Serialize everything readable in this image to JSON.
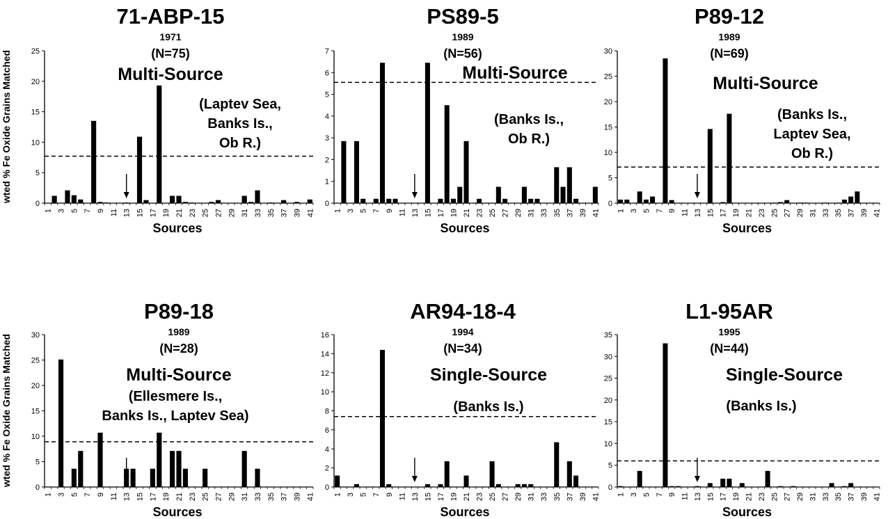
{
  "figure": {
    "ylabel": "wted % Fe Oxide Grains Matched",
    "xlabel": "Sources"
  },
  "chart_data": [
    {
      "type": "bar",
      "title": "71-ABP-15",
      "year": "1971",
      "n": "(N=75)",
      "classification": "Multi-Source",
      "sources_text": [
        "(Laptev Sea,",
        "Banks Is.,",
        "Ob R.)"
      ],
      "xlabel": "Sources",
      "ylabel": "wted % Fe Oxide Grains Matched",
      "ylim": [
        0,
        25
      ],
      "yticks": [
        0,
        5,
        10,
        15,
        20,
        25
      ],
      "categories": [
        1,
        2,
        3,
        4,
        5,
        6,
        7,
        8,
        9,
        10,
        11,
        12,
        13,
        14,
        15,
        16,
        17,
        18,
        19,
        20,
        21,
        22,
        23,
        24,
        25,
        26,
        27,
        28,
        29,
        30,
        31,
        32,
        33,
        34,
        35,
        36,
        37,
        38,
        39,
        40,
        41
      ],
      "xtick_labels": [
        "1",
        "3",
        "5",
        "7",
        "9",
        "11",
        "13",
        "15",
        "17",
        "19",
        "21",
        "23",
        "25",
        "27",
        "29",
        "31",
        "33",
        "35",
        "37",
        "39",
        "41"
      ],
      "values": [
        0,
        1.2,
        0,
        2.1,
        1.3,
        0.6,
        0,
        13.5,
        0.2,
        0.1,
        0,
        0,
        0.1,
        0,
        10.9,
        0.5,
        0,
        19.3,
        0,
        1.2,
        1.2,
        0.2,
        0.1,
        0,
        0,
        0.2,
        0.5,
        0,
        0,
        0,
        1.2,
        0.2,
        2.1,
        0,
        0.1,
        0,
        0.5,
        0,
        0.2,
        0,
        0.6
      ],
      "threshold": 7.7,
      "arrow_at": 13
    },
    {
      "type": "bar",
      "title": "PS89-5",
      "year": "1989",
      "n": "(N=56)",
      "classification": "Multi-Source",
      "sources_text": [
        "(Banks Is.,",
        "Ob R.)"
      ],
      "xlabel": "Sources",
      "ylim": [
        0,
        7
      ],
      "yticks": [
        0,
        1,
        2,
        3,
        4,
        5,
        6,
        7
      ],
      "categories": [
        1,
        2,
        3,
        4,
        5,
        6,
        7,
        8,
        9,
        10,
        11,
        12,
        13,
        14,
        15,
        16,
        17,
        18,
        19,
        20,
        21,
        22,
        23,
        24,
        25,
        26,
        27,
        28,
        29,
        30,
        31,
        32,
        33,
        34,
        35,
        36,
        37,
        38,
        39,
        40,
        41
      ],
      "xtick_labels": [
        "1",
        "3",
        "5",
        "7",
        "9",
        "11",
        "13",
        "15",
        "17",
        "19",
        "21",
        "23",
        "25",
        "27",
        "29",
        "31",
        "33",
        "35",
        "37",
        "39",
        "41"
      ],
      "values": [
        0,
        2.85,
        0,
        2.85,
        0.2,
        0,
        0.2,
        6.45,
        0.2,
        0.2,
        0,
        0,
        0,
        0,
        6.45,
        0,
        0.2,
        4.5,
        0.2,
        0.75,
        2.85,
        0,
        0.2,
        0,
        0,
        0.75,
        0.2,
        0,
        0,
        0.75,
        0.2,
        0.2,
        0,
        0,
        1.65,
        0.75,
        1.65,
        0.2,
        0,
        0,
        0.75
      ],
      "threshold": 5.55,
      "arrow_at": 13
    },
    {
      "type": "bar",
      "title": "P89-12",
      "year": "1989",
      "n": "(N=69)",
      "classification": "Multi-Source",
      "sources_text": [
        "(Banks Is.,",
        "Laptev Sea,",
        "Ob R.)"
      ],
      "xlabel": "Sources",
      "ylim": [
        0,
        30
      ],
      "yticks": [
        0,
        5,
        10,
        15,
        20,
        25,
        30
      ],
      "categories": [
        1,
        2,
        3,
        4,
        5,
        6,
        7,
        8,
        9,
        10,
        11,
        12,
        13,
        14,
        15,
        16,
        17,
        18,
        19,
        20,
        21,
        22,
        23,
        24,
        25,
        26,
        27,
        28,
        29,
        30,
        31,
        32,
        33,
        34,
        35,
        36,
        37,
        38,
        39,
        40,
        41
      ],
      "xtick_labels": [
        "1",
        "3",
        "5",
        "7",
        "9",
        "11",
        "13",
        "15",
        "17",
        "19",
        "21",
        "23",
        "25",
        "27",
        "29",
        "31",
        "33",
        "35",
        "37",
        "39",
        "41"
      ],
      "values": [
        0.7,
        0.7,
        0,
        2.3,
        0.7,
        1.3,
        0,
        28.5,
        0.6,
        0,
        0,
        0,
        0,
        0,
        14.6,
        0,
        0.2,
        17.6,
        0,
        0,
        0,
        0,
        0,
        0,
        0.1,
        0.2,
        0.6,
        0,
        0.1,
        0.1,
        0,
        0,
        0.1,
        0,
        0.1,
        0.7,
        1.3,
        2.3,
        0,
        0,
        0
      ],
      "threshold": 7.1,
      "arrow_at": 13
    },
    {
      "type": "bar",
      "title": "P89-18",
      "year": "1989",
      "n": "(N=28)",
      "classification": "Multi-Source",
      "sources_text": [
        "(Ellesmere Is.,",
        "Banks Is., Laptev Sea)"
      ],
      "xlabel": "Sources",
      "ylabel": "wted % Fe Oxide Grains Matched",
      "ylim": [
        0,
        30
      ],
      "yticks": [
        0,
        5,
        10,
        15,
        20,
        25,
        30
      ],
      "categories": [
        1,
        2,
        3,
        4,
        5,
        6,
        7,
        8,
        9,
        10,
        11,
        12,
        13,
        14,
        15,
        16,
        17,
        18,
        19,
        20,
        21,
        22,
        23,
        24,
        25,
        26,
        27,
        28,
        29,
        30,
        31,
        32,
        33,
        34,
        35,
        36,
        37,
        38,
        39,
        40,
        41
      ],
      "xtick_labels": [
        "1",
        "3",
        "5",
        "7",
        "9",
        "11",
        "13",
        "15",
        "17",
        "19",
        "21",
        "23",
        "25",
        "27",
        "29",
        "31",
        "33",
        "35",
        "37",
        "39",
        "41"
      ],
      "values": [
        0,
        0,
        25.1,
        0,
        3.6,
        7.1,
        0,
        0,
        10.7,
        0,
        0,
        0,
        3.6,
        3.6,
        0,
        0,
        3.6,
        10.7,
        0,
        7.1,
        7.1,
        3.6,
        0,
        0,
        3.6,
        0,
        0,
        0,
        0,
        0,
        7.1,
        0,
        3.6,
        0,
        0,
        0,
        0,
        0,
        0,
        0,
        0
      ],
      "threshold": 8.9,
      "arrow_at": 13
    },
    {
      "type": "bar",
      "title": "AR94-18-4",
      "year": "1994",
      "n": "(N=34)",
      "classification": "Single-Source",
      "sources_text": [
        "(Banks Is.)"
      ],
      "xlabel": "Sources",
      "ylim": [
        0,
        16
      ],
      "yticks": [
        0,
        2,
        4,
        6,
        8,
        10,
        12,
        14,
        16
      ],
      "categories": [
        1,
        2,
        3,
        4,
        5,
        6,
        7,
        8,
        9,
        10,
        11,
        12,
        13,
        14,
        15,
        16,
        17,
        18,
        19,
        20,
        21,
        22,
        23,
        24,
        25,
        26,
        27,
        28,
        29,
        30,
        31,
        32,
        33,
        34,
        35,
        36,
        37,
        38,
        39,
        40,
        41
      ],
      "xtick_labels": [
        "1",
        "3",
        "5",
        "7",
        "9",
        "11",
        "13",
        "15",
        "17",
        "19",
        "21",
        "23",
        "25",
        "27",
        "29",
        "31",
        "33",
        "35",
        "37",
        "39",
        "41"
      ],
      "values": [
        1.2,
        0,
        0,
        0.3,
        0,
        0,
        0,
        14.4,
        0.3,
        0,
        0,
        0,
        0,
        0,
        0.3,
        0,
        0.3,
        2.7,
        0,
        0,
        1.2,
        0,
        0,
        0,
        2.7,
        0.3,
        0,
        0,
        0.3,
        0.3,
        0.3,
        0,
        0,
        0,
        4.7,
        0,
        2.7,
        1.2,
        0,
        0,
        0
      ],
      "threshold": 7.4,
      "arrow_at": 13
    },
    {
      "type": "bar",
      "title": "L1-95AR",
      "year": "1995",
      "n": "(N=44)",
      "classification": "Single-Source",
      "sources_text": [
        "(Banks Is.)"
      ],
      "xlabel": "Sources",
      "ylim": [
        0,
        35
      ],
      "yticks": [
        0,
        5,
        10,
        15,
        20,
        25,
        30,
        35
      ],
      "categories": [
        1,
        2,
        3,
        4,
        5,
        6,
        7,
        8,
        9,
        10,
        11,
        12,
        13,
        14,
        15,
        16,
        17,
        18,
        19,
        20,
        21,
        22,
        23,
        24,
        25,
        26,
        27,
        28,
        29,
        30,
        31,
        32,
        33,
        34,
        35,
        36,
        37,
        38,
        39,
        40,
        41
      ],
      "xtick_labels": [
        "1",
        "3",
        "5",
        "7",
        "9",
        "11",
        "13",
        "15",
        "17",
        "19",
        "21",
        "23",
        "25",
        "27",
        "29",
        "31",
        "33",
        "35",
        "37",
        "39",
        "41"
      ],
      "values": [
        0.2,
        0,
        0,
        3.7,
        0,
        0,
        0,
        33,
        0.2,
        0.2,
        0,
        0,
        0.2,
        0,
        0.9,
        0,
        1.9,
        1.9,
        0,
        0.9,
        0,
        0,
        0,
        3.7,
        0,
        0.2,
        0,
        0.2,
        0,
        0,
        0,
        0,
        0,
        0.9,
        0,
        0.2,
        0.9,
        0,
        0,
        0,
        0
      ],
      "threshold": 6,
      "arrow_at": 13
    }
  ]
}
